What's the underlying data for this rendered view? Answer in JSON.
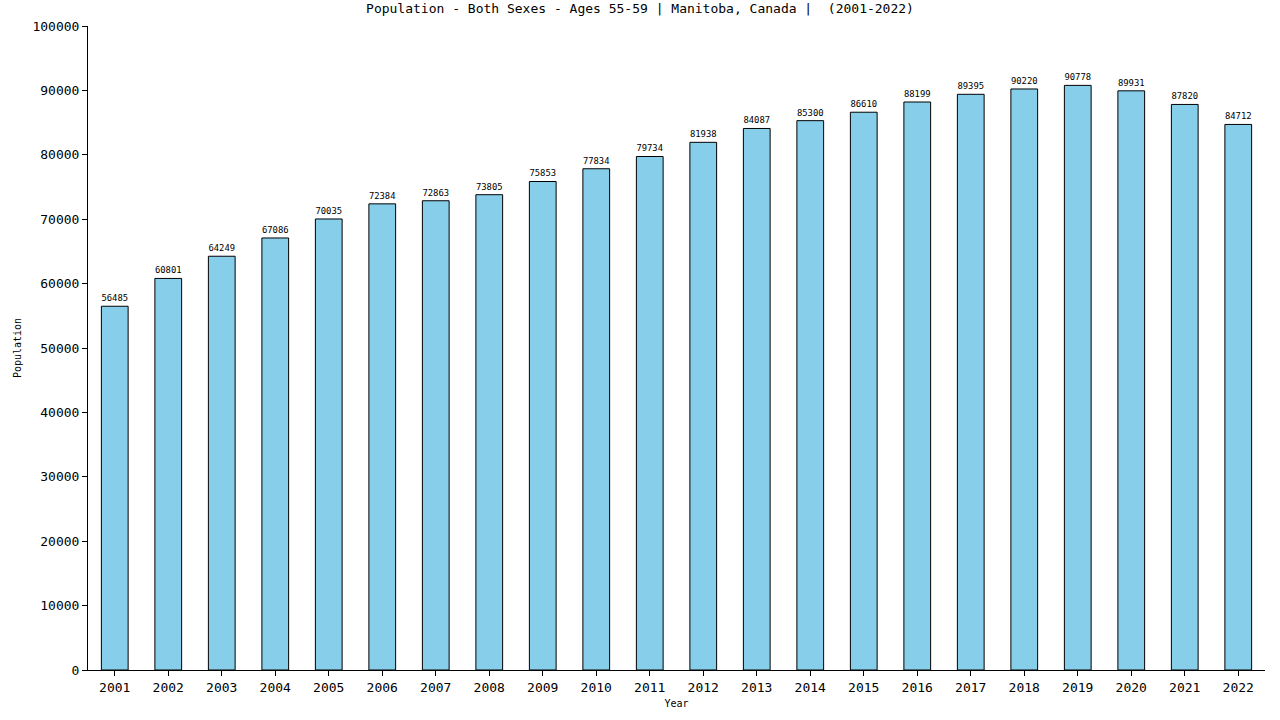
{
  "chart_data": {
    "type": "bar",
    "title": "Population - Both Sexes - Ages 55-59 | Manitoba, Canada |  (2001-2022)",
    "x_label": "Year",
    "y_label": "Population",
    "categories": [
      "2001",
      "2002",
      "2003",
      "2004",
      "2005",
      "2006",
      "2007",
      "2008",
      "2009",
      "2010",
      "2011",
      "2012",
      "2013",
      "2014",
      "2015",
      "2016",
      "2017",
      "2018",
      "2019",
      "2020",
      "2021",
      "2022"
    ],
    "values": [
      56485,
      60801,
      64249,
      67086,
      70035,
      72384,
      72863,
      73805,
      75853,
      77834,
      79734,
      81938,
      84087,
      85300,
      86610,
      88199,
      89395,
      90220,
      90778,
      89931,
      87820,
      84712
    ],
    "color": "#87ceeb",
    "ylim": [
      0,
      100000
    ],
    "yticks": [
      0,
      10000,
      20000,
      30000,
      40000,
      50000,
      60000,
      70000,
      80000,
      90000,
      100000
    ],
    "grid": false,
    "data_labels": true
  }
}
